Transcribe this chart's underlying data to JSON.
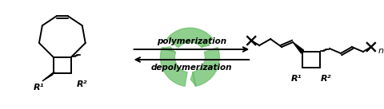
{
  "bg_color": "#ffffff",
  "black": "#000000",
  "green": "#6abf69",
  "poly_text": "polymerization",
  "depoly_text": "depolymerization",
  "label_R1_left": "R¹",
  "label_R2_left": "R²",
  "label_R1_right": "R¹",
  "label_R2_right": "R²",
  "label_n": "n",
  "figsize": [
    4.8,
    1.37
  ],
  "dpi": 100
}
